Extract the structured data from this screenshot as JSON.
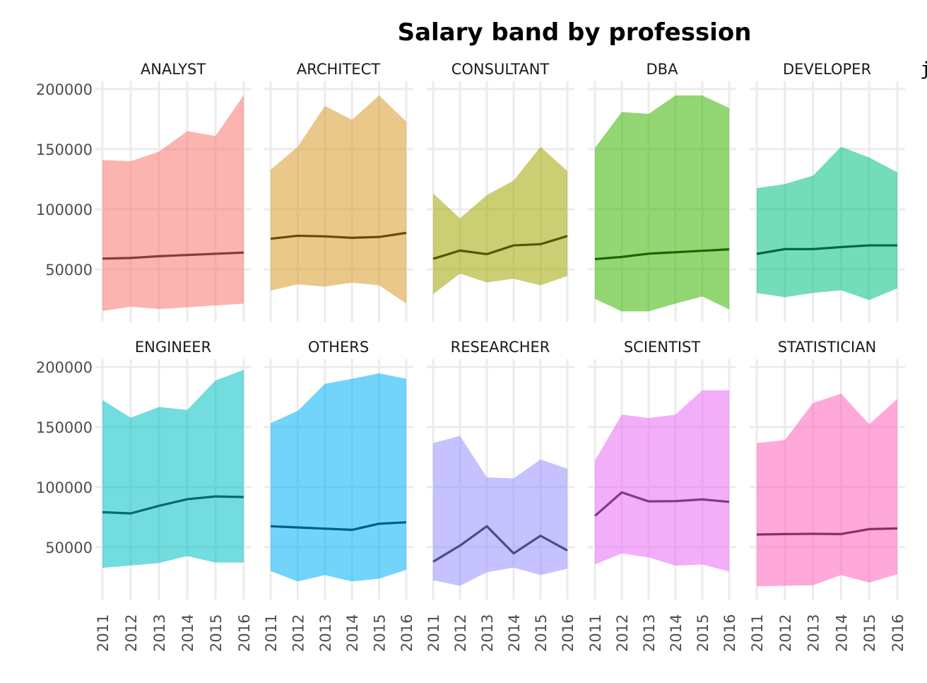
{
  "chart_data": {
    "type": "area",
    "title": "Salary band by profession",
    "xlabel": "",
    "ylabel": "",
    "ylim": [
      6500,
      206500
    ],
    "xlim": [
      2010.75,
      2016.27
    ],
    "grid": true,
    "layout": "facet 2 rows x 5 columns",
    "x": [
      2011,
      2012,
      2013,
      2014,
      2015,
      2016
    ],
    "x_tick_labels": [
      "2011",
      "2012",
      "2013",
      "2014",
      "2015",
      "2016"
    ],
    "y_ticks": [
      50000,
      100000,
      150000,
      200000
    ],
    "y_tick_labels": [
      "50000",
      "100000",
      "150000",
      "200000"
    ],
    "legend_fragment": "j",
    "panels": [
      {
        "name": "ANALYST",
        "fill": "#F8766D",
        "line": "#8B3A35",
        "upper": [
          141000,
          140000,
          148000,
          165000,
          161000,
          195000
        ],
        "median": [
          59000,
          59500,
          61000,
          62000,
          63000,
          64000
        ],
        "lower": [
          15400,
          19000,
          17000,
          18500,
          20000,
          21500
        ]
      },
      {
        "name": "ARCHITECT",
        "fill": "#D89A2A",
        "line": "#6B4A00",
        "upper": [
          133000,
          152000,
          186000,
          174500,
          194700,
          173000
        ],
        "median": [
          75500,
          78000,
          77500,
          76300,
          77000,
          80400
        ],
        "lower": [
          32400,
          37600,
          35700,
          39000,
          36700,
          21600
        ]
      },
      {
        "name": "CONSULTANT",
        "fill": "#A3A500",
        "line": "#555500",
        "upper": [
          113300,
          92500,
          111800,
          124000,
          152000,
          131800
        ],
        "median": [
          58800,
          65700,
          62700,
          70000,
          71000,
          77800
        ],
        "lower": [
          29400,
          46500,
          39200,
          42200,
          36700,
          44500
        ]
      },
      {
        "name": "DBA",
        "fill": "#39B600",
        "line": "#1A6400",
        "upper": [
          151000,
          181000,
          179400,
          194700,
          194700,
          184300
        ],
        "median": [
          58600,
          60400,
          63100,
          64300,
          65500,
          66700
        ],
        "lower": [
          25500,
          15100,
          15100,
          21600,
          27500,
          16700
        ]
      },
      {
        "name": "DEVELOPER",
        "fill": "#00BF7D",
        "line": "#00643E",
        "upper": [
          117600,
          121000,
          128000,
          152000,
          143100,
          130800
        ],
        "median": [
          62900,
          66900,
          66900,
          68600,
          70000,
          70000
        ],
        "lower": [
          30400,
          26900,
          30400,
          32700,
          24500,
          34300
        ]
      },
      {
        "name": "ENGINEER",
        "fill": "#00BFC4",
        "line": "#006B6E",
        "upper": [
          172500,
          157800,
          166700,
          164300,
          188800,
          197600
        ],
        "median": [
          79200,
          78200,
          84500,
          90000,
          92300,
          91800
        ],
        "lower": [
          32900,
          34900,
          36900,
          42700,
          37300,
          37300
        ]
      },
      {
        "name": "OTHERS",
        "fill": "#00B0F6",
        "line": "#005C85",
        "upper": [
          153300,
          163500,
          186000,
          190200,
          194700,
          190200
        ],
        "median": [
          67500,
          66500,
          65500,
          64500,
          69600,
          70800
        ],
        "lower": [
          30200,
          21600,
          26900,
          21600,
          23900,
          31200
        ]
      },
      {
        "name": "RESEARCHER",
        "fill": "#9590FF",
        "line": "#4E4A85",
        "upper": [
          136700,
          142700,
          108200,
          107300,
          123100,
          115300
        ],
        "median": [
          38000,
          51400,
          67500,
          44900,
          59600,
          47300
        ],
        "lower": [
          22500,
          18000,
          29200,
          33100,
          26900,
          32200
        ]
      },
      {
        "name": "SCIENTIST",
        "fill": "#E76BF3",
        "line": "#7E3A85",
        "upper": [
          122200,
          160400,
          157500,
          160400,
          180600,
          180600
        ],
        "median": [
          76100,
          95700,
          88200,
          88400,
          89800,
          87800
        ],
        "lower": [
          35700,
          44900,
          41600,
          34700,
          35700,
          29800
        ]
      },
      {
        "name": "STATISTICIAN",
        "fill": "#FF62BC",
        "line": "#8B2F62",
        "upper": [
          136700,
          139200,
          170000,
          177800,
          152400,
          173500
        ],
        "median": [
          60600,
          61000,
          61200,
          61000,
          65100,
          65700
        ],
        "lower": [
          17500,
          18000,
          18400,
          26900,
          20600,
          27500
        ]
      }
    ]
  }
}
